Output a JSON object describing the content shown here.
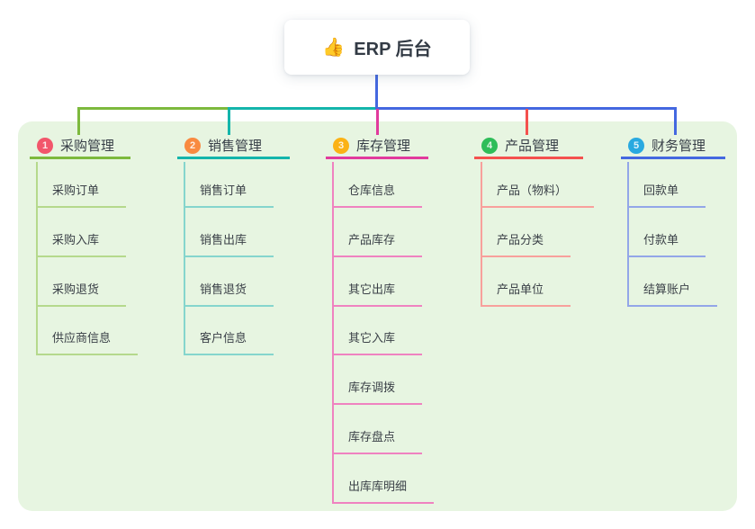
{
  "root": {
    "emoji": "👍",
    "label": "ERP 后台"
  },
  "canvas": {
    "background": "#ffffff",
    "panel_color": "#e7f5e1"
  },
  "connector_root_color": "#4468e0",
  "branches": [
    {
      "num": "1",
      "label": "采购管理",
      "badge_color": "#f2566b",
      "line_color": "#7db93d",
      "child_line_color": "#b5d98c",
      "children": [
        "采购订单",
        "采购入库",
        "采购退货",
        "供应商信息"
      ]
    },
    {
      "num": "2",
      "label": "销售管理",
      "badge_color": "#f98a40",
      "line_color": "#14b5ab",
      "child_line_color": "#85d5cd",
      "children": [
        "销售订单",
        "销售出库",
        "销售退货",
        "客户信息"
      ]
    },
    {
      "num": "3",
      "label": "库存管理",
      "badge_color": "#fbb215",
      "line_color": "#e13a9d",
      "child_line_color": "#ef82c0",
      "children": [
        "仓库信息",
        "产品库存",
        "其它出库",
        "其它入库",
        "库存调拨",
        "库存盘点",
        "出库库明细"
      ]
    },
    {
      "num": "4",
      "label": "产品管理",
      "badge_color": "#2ebd59",
      "line_color": "#f4514e",
      "child_line_color": "#f8a09c",
      "children": [
        "产品（物料）",
        "产品分类",
        "产品单位"
      ]
    },
    {
      "num": "5",
      "label": "财务管理",
      "badge_color": "#29a9e0",
      "line_color": "#4468e0",
      "child_line_color": "#93a6e8",
      "children": [
        "回款单",
        "付款单",
        "结算账户"
      ]
    }
  ]
}
